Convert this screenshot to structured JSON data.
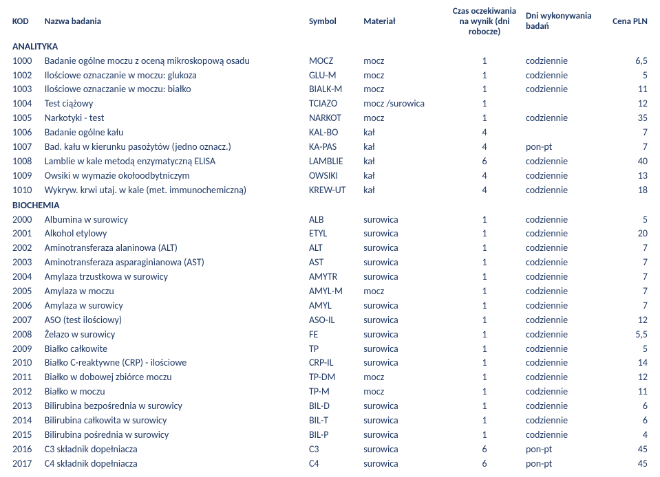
{
  "columns": {
    "kod": "KOD",
    "nazwa": "Nazwa badania",
    "symbol": "Symbol",
    "material": "Materiał",
    "czas": "Czas oczekiwania na wynik (dni robocze)",
    "dni": "Dni wykonywania badań",
    "cena": "Cena PLN"
  },
  "sections": [
    {
      "title": "ANALITYKA",
      "rows": [
        {
          "kod": "1000",
          "nazwa": "Badanie ogólne moczu z oceną mikroskopową osadu",
          "symbol": "MOCZ",
          "material": "mocz",
          "czas": "1",
          "dni": "codziennie",
          "cena": "6,5"
        },
        {
          "kod": "1002",
          "nazwa": "Ilościowe oznaczanie w moczu: glukoza",
          "symbol": "GLU-M",
          "material": "mocz",
          "czas": "1",
          "dni": "codziennie",
          "cena": "5"
        },
        {
          "kod": "1003",
          "nazwa": "Ilościowe oznaczanie w moczu: białko",
          "symbol": "BIALK-M",
          "material": "mocz",
          "czas": "1",
          "dni": "codziennie",
          "cena": "11"
        },
        {
          "kod": "1004",
          "nazwa": "Test ciążowy",
          "symbol": "TCIAZO",
          "material": "mocz /surowica",
          "czas": "1",
          "dni": "",
          "cena": "12"
        },
        {
          "kod": "1005",
          "nazwa": "Narkotyki - test",
          "symbol": "NARKOT",
          "material": "mocz",
          "czas": "1",
          "dni": "codziennie",
          "cena": "35"
        },
        {
          "kod": "1006",
          "nazwa": "Badanie ogólne kału",
          "symbol": "KAL-BO",
          "material": "kał",
          "czas": "4",
          "dni": "",
          "cena": "7"
        },
        {
          "kod": "1007",
          "nazwa": "Bad. kału w kierunku pasożytów (jedno oznacz.)",
          "symbol": "KA-PAS",
          "material": "kał",
          "czas": "4",
          "dni": "pon-pt",
          "cena": "7"
        },
        {
          "kod": "1008",
          "nazwa": "Lamblie w kale metodą enzymatyczną ELISA",
          "symbol": "LAMBLIE",
          "material": "kał",
          "czas": "6",
          "dni": "codziennie",
          "cena": "40"
        },
        {
          "kod": "1009",
          "nazwa": "Owsiki w wymazie okołoodbytniczym",
          "symbol": "OWSIKI",
          "material": "kał",
          "czas": "4",
          "dni": "codziennie",
          "cena": "13"
        },
        {
          "kod": "1010",
          "nazwa": "Wykryw. krwi utaj. w kale (met. immunochemiczną)",
          "symbol": "KREW-UT",
          "material": "kał",
          "czas": "4",
          "dni": "codziennie",
          "cena": "18"
        }
      ]
    },
    {
      "title": "BIOCHEMIA",
      "rows": [
        {
          "kod": "2000",
          "nazwa": "Albumina w surowicy",
          "symbol": "ALB",
          "material": "surowica",
          "czas": "1",
          "dni": "codziennie",
          "cena": "5"
        },
        {
          "kod": "2001",
          "nazwa": "Alkohol etylowy",
          "symbol": "ETYL",
          "material": "surowica",
          "czas": "1",
          "dni": "codziennie",
          "cena": "20"
        },
        {
          "kod": "2002",
          "nazwa": "Aminotransferaza alaninowa (ALT)",
          "symbol": "ALT",
          "material": "surowica",
          "czas": "1",
          "dni": "codziennie",
          "cena": "7"
        },
        {
          "kod": "2003",
          "nazwa": "Aminotransferaza asparaginianowa (AST)",
          "symbol": "AST",
          "material": "surowica",
          "czas": "1",
          "dni": "codziennie",
          "cena": "7"
        },
        {
          "kod": "2004",
          "nazwa": "Amylaza trzustkowa w surowicy",
          "symbol": "AMYTR",
          "material": "surowica",
          "czas": "1",
          "dni": "codziennie",
          "cena": "7"
        },
        {
          "kod": "2005",
          "nazwa": "Amylaza w moczu",
          "symbol": "AMYL-M",
          "material": "mocz",
          "czas": "1",
          "dni": "codziennie",
          "cena": "7"
        },
        {
          "kod": "2006",
          "nazwa": "Amylaza w surowicy",
          "symbol": "AMYL",
          "material": "surowica",
          "czas": "1",
          "dni": "codziennie",
          "cena": "7"
        },
        {
          "kod": "2007",
          "nazwa": "ASO (test ilościowy)",
          "symbol": "ASO-IL",
          "material": "surowica",
          "czas": "1",
          "dni": "codziennie",
          "cena": "12"
        },
        {
          "kod": "2008",
          "nazwa": "Żelazo w surowicy",
          "symbol": "FE",
          "material": "surowica",
          "czas": "1",
          "dni": "codziennie",
          "cena": "5,5"
        },
        {
          "kod": "2009",
          "nazwa": "Białko całkowite",
          "symbol": "TP",
          "material": "surowica",
          "czas": "1",
          "dni": "codziennie",
          "cena": "5"
        },
        {
          "kod": "2010",
          "nazwa": "Białko C-reaktywne (CRP) - ilościowe",
          "symbol": "CRP-IL",
          "material": "surowica",
          "czas": "1",
          "dni": "codziennie",
          "cena": "14"
        },
        {
          "kod": "2011",
          "nazwa": "Białko w dobowej zbiórce moczu",
          "symbol": "TP-DM",
          "material": "mocz",
          "czas": "1",
          "dni": "codziennie",
          "cena": "12"
        },
        {
          "kod": "2012",
          "nazwa": "Białko w moczu",
          "symbol": "TP-M",
          "material": "mocz",
          "czas": "1",
          "dni": "codziennie",
          "cena": "11"
        },
        {
          "kod": "2013",
          "nazwa": "Bilirubina bezpośrednia w  surowicy",
          "symbol": "BIL-D",
          "material": "surowica",
          "czas": "1",
          "dni": "codziennie",
          "cena": "6"
        },
        {
          "kod": "2014",
          "nazwa": "Bilirubina całkowita w surowicy",
          "symbol": "BIL-T",
          "material": "surowica",
          "czas": "1",
          "dni": "codziennie",
          "cena": "6"
        },
        {
          "kod": "2015",
          "nazwa": "Bilirubina pośrednia w surowicy",
          "symbol": "BIL-P",
          "material": "surowica",
          "czas": "1",
          "dni": "codziennie",
          "cena": "4"
        },
        {
          "kod": "2016",
          "nazwa": "C3 składnik dopełniacza",
          "symbol": "C3",
          "material": "surowica",
          "czas": "6",
          "dni": "pon-pt",
          "cena": "45"
        },
        {
          "kod": "2017",
          "nazwa": "C4 składnik dopełniacza",
          "symbol": "C4",
          "material": "surowica",
          "czas": "6",
          "dni": "pon-pt",
          "cena": "45"
        }
      ]
    }
  ]
}
